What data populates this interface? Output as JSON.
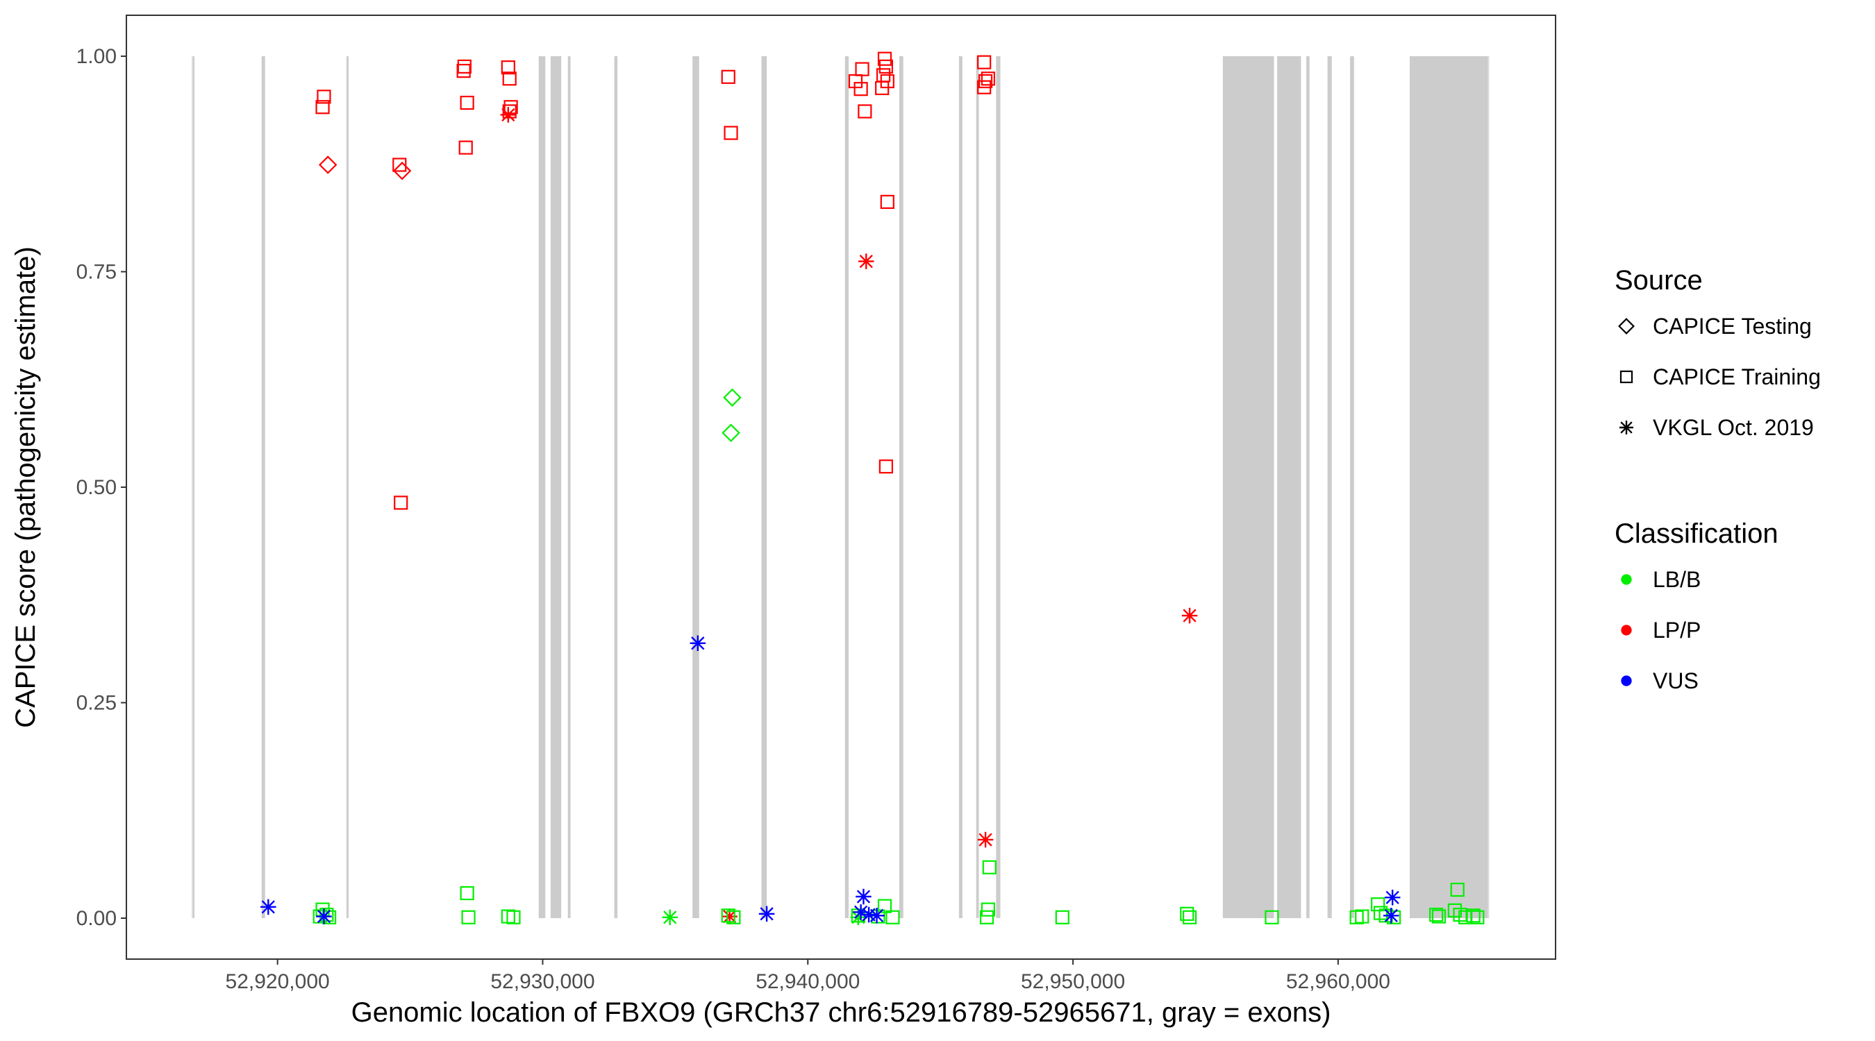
{
  "chart_data": {
    "type": "scatter",
    "title": "",
    "xlabel": "Genomic location of FBXO9 (GRCh37 chr6:52916789-52965671, gray = exons)",
    "ylabel": "CAPICE score (pathogenicity estimate)",
    "xlim": [
      52914300,
      52968200
    ],
    "ylim": [
      -0.0475,
      1.0475
    ],
    "x_ticks": [
      52920000,
      52930000,
      52940000,
      52950000,
      52960000
    ],
    "x_tick_labels": [
      "52,920,000",
      "52,930,000",
      "52,940,000",
      "52,950,000",
      "52,960,000"
    ],
    "y_ticks": [
      0,
      0.25,
      0.5,
      0.75,
      1.0
    ],
    "y_tick_labels": [
      "0.00",
      "0.25",
      "0.50",
      "0.75",
      "1.00"
    ],
    "gene_range": [
      52916789,
      52965671
    ],
    "exons": [
      [
        52916789,
        52916830
      ],
      [
        52919400,
        52919530
      ],
      [
        52922600,
        52922660
      ],
      [
        52929850,
        52930100
      ],
      [
        52930300,
        52930700
      ],
      [
        52930950,
        52931050
      ],
      [
        52932700,
        52932820
      ],
      [
        52935650,
        52935900
      ],
      [
        52938250,
        52938450
      ],
      [
        52941400,
        52941540
      ],
      [
        52943450,
        52943600
      ],
      [
        52945700,
        52945830
      ],
      [
        52946350,
        52946450
      ],
      [
        52947100,
        52947260
      ],
      [
        52955650,
        52957580
      ],
      [
        52957700,
        52958600
      ],
      [
        52958800,
        52958920
      ],
      [
        52959600,
        52959760
      ],
      [
        52960450,
        52960600
      ],
      [
        52962700,
        52965671
      ]
    ],
    "grid": false,
    "legend_position": "right",
    "legends": {
      "source": {
        "title": "Source",
        "items": [
          {
            "label": "CAPICE Testing",
            "shape": "diamond"
          },
          {
            "label": "CAPICE Training",
            "shape": "square"
          },
          {
            "label": "VKGL Oct. 2019",
            "shape": "asterisk"
          }
        ]
      },
      "classification": {
        "title": "Classification",
        "items": [
          {
            "label": "LB/B",
            "color": "#00ee00"
          },
          {
            "label": "LP/P",
            "color": "#ff0000"
          },
          {
            "label": "VUS",
            "color": "#0000ff"
          }
        ]
      }
    },
    "series": [
      {
        "source": "CAPICE Training",
        "classification": "LP/P",
        "points": [
          [
            52921750,
            0.953
          ],
          [
            52921700,
            0.941
          ],
          [
            52924600,
            0.874
          ],
          [
            52924650,
            0.482
          ],
          [
            52927050,
            0.988
          ],
          [
            52927020,
            0.983
          ],
          [
            52927150,
            0.946
          ],
          [
            52927100,
            0.894
          ],
          [
            52928700,
            0.987
          ],
          [
            52928750,
            0.974
          ],
          [
            52928800,
            0.941
          ],
          [
            52928750,
            0.936
          ],
          [
            52937000,
            0.976
          ],
          [
            52937100,
            0.911
          ],
          [
            52941800,
            0.971
          ],
          [
            52942050,
            0.985
          ],
          [
            52942000,
            0.962
          ],
          [
            52942150,
            0.936
          ],
          [
            52942900,
            0.997
          ],
          [
            52942950,
            0.988
          ],
          [
            52942850,
            0.978
          ],
          [
            52943000,
            0.971
          ],
          [
            52942800,
            0.963
          ],
          [
            52943000,
            0.831
          ],
          [
            52942950,
            0.524
          ],
          [
            52946650,
            0.993
          ],
          [
            52946800,
            0.974
          ],
          [
            52946700,
            0.971
          ],
          [
            52946650,
            0.964
          ]
        ]
      },
      {
        "source": "CAPICE Testing",
        "classification": "LP/P",
        "points": [
          [
            52921900,
            0.874
          ],
          [
            52924700,
            0.867
          ]
        ]
      },
      {
        "source": "VKGL Oct. 2019",
        "classification": "LP/P",
        "points": [
          [
            52928700,
            0.932
          ],
          [
            52942200,
            0.762
          ],
          [
            52946700,
            0.091
          ],
          [
            52954400,
            0.351
          ],
          [
            52937050,
            0.002
          ]
        ]
      },
      {
        "source": "CAPICE Training",
        "classification": "LB/B",
        "points": [
          [
            52921700,
            0.01
          ],
          [
            52921850,
            0.004
          ],
          [
            52921600,
            0.002
          ],
          [
            52921950,
            0.001
          ],
          [
            52927150,
            0.029
          ],
          [
            52927200,
            0.001
          ],
          [
            52928700,
            0.002
          ],
          [
            52928900,
            0.001
          ],
          [
            52937000,
            0.003
          ],
          [
            52937200,
            0.001
          ],
          [
            52941900,
            0.003
          ],
          [
            52942650,
            0.002
          ],
          [
            52942900,
            0.014
          ],
          [
            52943200,
            0.001
          ],
          [
            52946850,
            0.059
          ],
          [
            52946800,
            0.01
          ],
          [
            52946750,
            0.001
          ],
          [
            52949600,
            0.001
          ],
          [
            52954300,
            0.005
          ],
          [
            52954400,
            0.001
          ],
          [
            52957500,
            0.001
          ],
          [
            52960700,
            0.001
          ],
          [
            52960900,
            0.002
          ],
          [
            52961500,
            0.016
          ],
          [
            52961600,
            0.006
          ],
          [
            52961800,
            0.003
          ],
          [
            52962100,
            0.001
          ],
          [
            52963700,
            0.004
          ],
          [
            52963800,
            0.002
          ],
          [
            52964500,
            0.033
          ],
          [
            52964400,
            0.009
          ],
          [
            52964600,
            0.004
          ],
          [
            52964800,
            0.001
          ],
          [
            52965100,
            0.003
          ],
          [
            52965250,
            0.001
          ]
        ]
      },
      {
        "source": "CAPICE Testing",
        "classification": "LB/B",
        "points": [
          [
            52937150,
            0.604
          ],
          [
            52937100,
            0.563
          ]
        ]
      },
      {
        "source": "VKGL Oct. 2019",
        "classification": "LB/B",
        "points": [
          [
            52934800,
            0.001
          ],
          [
            52941900,
            0.001
          ]
        ]
      },
      {
        "source": "VKGL Oct. 2019",
        "classification": "VUS",
        "points": [
          [
            52919650,
            0.013
          ],
          [
            52921750,
            0.002
          ],
          [
            52935850,
            0.319
          ],
          [
            52938450,
            0.005
          ],
          [
            52942100,
            0.025
          ],
          [
            52942000,
            0.007
          ],
          [
            52942300,
            0.004
          ],
          [
            52942600,
            0.003
          ],
          [
            52962050,
            0.024
          ],
          [
            52962000,
            0.003
          ]
        ]
      }
    ]
  }
}
